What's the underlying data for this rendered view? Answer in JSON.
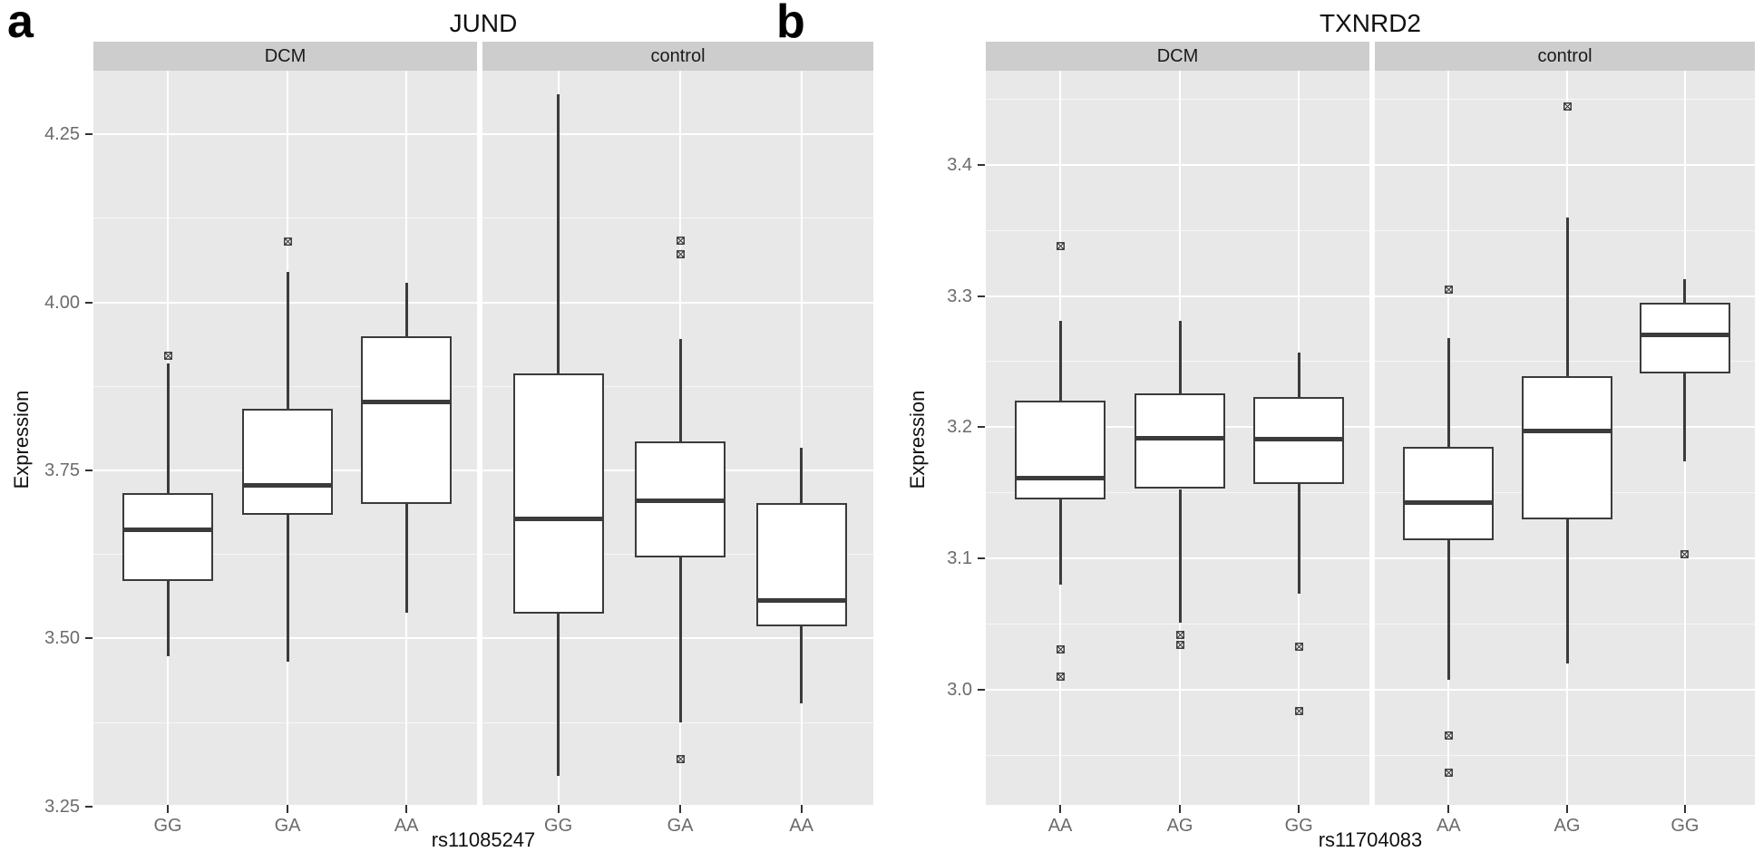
{
  "figure": {
    "panel_a_letter": "a",
    "panel_b_letter": "b"
  },
  "chart_data": [
    {
      "type": "boxplot",
      "panel_letter": "a",
      "title": "JUND",
      "ylabel": "Expression",
      "xlabel": "rs11085247",
      "legend": "none",
      "grid": true,
      "ylim": [
        3.2525,
        4.3445
      ],
      "yticks": [
        4.25,
        4.0,
        3.75,
        3.5,
        3.25
      ],
      "ytick_labels": [
        "4.25",
        "4.00",
        "3.75",
        "3.50",
        "3.25"
      ],
      "yticks_minor": [
        4.125,
        3.875,
        3.625,
        3.375
      ],
      "facets": [
        {
          "label": "DCM",
          "categories": [
            "GG",
            "GA",
            "AA"
          ],
          "boxes": [
            {
              "category": "GG",
              "whisker_low": 3.474,
              "q1": 3.585,
              "median": 3.661,
              "q3": 3.716,
              "whisker_high": 3.909,
              "outliers": [
                3.921
              ]
            },
            {
              "category": "GA",
              "whisker_low": 3.466,
              "q1": 3.684,
              "median": 3.728,
              "q3": 3.842,
              "whisker_high": 4.045,
              "outliers": [
                4.091
              ]
            },
            {
              "category": "AA",
              "whisker_low": 3.538,
              "q1": 3.7,
              "median": 3.852,
              "q3": 3.95,
              "whisker_high": 4.029,
              "outliers": []
            }
          ]
        },
        {
          "label": "control",
          "categories": [
            "GG",
            "GA",
            "AA"
          ],
          "boxes": [
            {
              "category": "GG",
              "whisker_low": 3.295,
              "q1": 3.537,
              "median": 3.678,
              "q3": 3.894,
              "whisker_high": 4.31,
              "outliers": []
            },
            {
              "category": "GA",
              "whisker_low": 3.375,
              "q1": 3.62,
              "median": 3.705,
              "q3": 3.793,
              "whisker_high": 3.945,
              "outliers": [
                4.092,
                4.072,
                3.32
              ]
            },
            {
              "category": "AA",
              "whisker_low": 3.404,
              "q1": 3.518,
              "median": 3.556,
              "q3": 3.701,
              "whisker_high": 3.784,
              "outliers": []
            }
          ]
        }
      ]
    },
    {
      "type": "boxplot",
      "panel_letter": "b",
      "title": "TXNRD2",
      "ylabel": "Expression",
      "xlabel": "rs11704083",
      "legend": "none",
      "grid": true,
      "ylim": [
        2.9125,
        3.4715
      ],
      "yticks": [
        3.4,
        3.3,
        3.2,
        3.1,
        3.0
      ],
      "ytick_labels": [
        "3.4",
        "3.3",
        "3.2",
        "3.1",
        "3.0"
      ],
      "yticks_minor": [
        3.45,
        3.35,
        3.25,
        3.15,
        3.05,
        2.95
      ],
      "facets": [
        {
          "label": "DCM",
          "categories": [
            "AA",
            "AG",
            "GG"
          ],
          "boxes": [
            {
              "category": "AA",
              "whisker_low": 3.08,
              "q1": 3.145,
              "median": 3.161,
              "q3": 3.22,
              "whisker_high": 3.281,
              "outliers": [
                3.338,
                3.031,
                3.01
              ]
            },
            {
              "category": "AG",
              "whisker_low": 3.051,
              "q1": 3.153,
              "median": 3.192,
              "q3": 3.226,
              "whisker_high": 3.281,
              "outliers": [
                3.042,
                3.034
              ]
            },
            {
              "category": "GG",
              "whisker_low": 3.073,
              "q1": 3.157,
              "median": 3.191,
              "q3": 3.223,
              "whisker_high": 3.257,
              "outliers": [
                3.033,
                2.984
              ]
            }
          ]
        },
        {
          "label": "control",
          "categories": [
            "AA",
            "AG",
            "GG"
          ],
          "boxes": [
            {
              "category": "AA",
              "whisker_low": 3.008,
              "q1": 3.114,
              "median": 3.143,
              "q3": 3.185,
              "whisker_high": 3.268,
              "outliers": [
                3.305,
                2.965,
                2.937
              ]
            },
            {
              "category": "AG",
              "whisker_low": 3.02,
              "q1": 3.13,
              "median": 3.197,
              "q3": 3.239,
              "whisker_high": 3.36,
              "outliers": [
                3.444
              ]
            },
            {
              "category": "GG",
              "whisker_low": 3.174,
              "q1": 3.241,
              "median": 3.27,
              "q3": 3.295,
              "whisker_high": 3.313,
              "outliers": [
                3.103
              ]
            }
          ]
        }
      ]
    }
  ],
  "style": {
    "panel_background": "#e8e8e8",
    "strip_background": "#cdcdcd",
    "box_stroke": "#3b3b3b",
    "box_fill": "#ffffff",
    "gridline_color": "#ffffff",
    "tick_label_color": "#6b6b6b"
  }
}
